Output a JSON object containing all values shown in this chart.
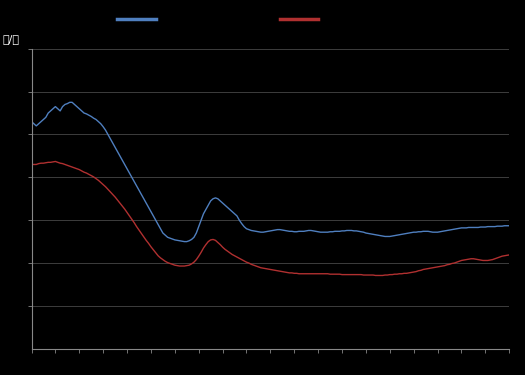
{
  "bg_color": "#000000",
  "plot_bg_color": "#000000",
  "grid_color": "#555555",
  "blue_color": "#4f7fbf",
  "red_color": "#b03030",
  "ylabel": "元/吨",
  "xlim": [
    0,
    100
  ],
  "ylim": [
    0,
    7
  ],
  "blue_x": [
    0,
    0.5,
    1,
    1.5,
    2,
    2.5,
    3,
    3.5,
    4,
    4.5,
    5,
    5.5,
    6,
    6.5,
    7,
    7.5,
    8,
    8.5,
    9,
    9.5,
    10,
    10.5,
    11,
    11.5,
    12,
    12.5,
    13,
    13.5,
    14,
    14.5,
    15,
    15.5,
    16,
    16.5,
    17,
    17.5,
    18,
    18.5,
    19,
    19.5,
    20,
    20.5,
    21,
    21.5,
    22,
    22.5,
    23,
    23.5,
    24,
    24.5,
    25,
    25.5,
    26,
    26.5,
    27,
    27.5,
    28,
    28.5,
    29,
    29.5,
    30,
    30.5,
    31,
    31.5,
    32,
    32.5,
    33,
    33.5,
    34,
    34.5,
    35,
    35.5,
    36,
    36.5,
    37,
    37.5,
    38,
    38.5,
    39,
    39.5,
    40,
    40.5,
    41,
    41.5,
    42,
    42.5,
    43,
    43.5,
    44,
    44.5,
    45,
    45.5,
    46,
    46.5,
    47,
    47.5,
    48,
    48.5,
    49,
    49.5,
    50,
    50.5,
    51,
    51.5,
    52,
    52.5,
    53,
    53.5,
    54,
    54.5,
    55,
    55.5,
    56,
    56.5,
    57,
    57.5,
    58,
    58.5,
    59,
    59.5,
    60,
    60.5,
    61,
    61.5,
    62,
    62.5,
    63,
    63.5,
    64,
    64.5,
    65,
    65.5,
    66,
    66.5,
    67,
    67.5,
    68,
    68.5,
    69,
    69.5,
    70,
    70.5,
    71,
    71.5,
    72,
    72.5,
    73,
    73.5,
    74,
    74.5,
    75,
    75.5,
    76,
    76.5,
    77,
    77.5,
    78,
    78.5,
    79,
    79.5,
    80,
    80.5,
    81,
    81.5,
    82,
    82.5,
    83,
    83.5,
    84,
    84.5,
    85,
    85.5,
    86,
    86.5,
    87,
    87.5,
    88,
    88.5,
    89,
    89.5,
    90,
    90.5,
    91,
    91.5,
    92,
    92.5,
    93,
    93.5,
    94,
    94.5,
    95,
    95.5,
    96,
    96.5,
    97,
    97.5,
    98,
    98.5,
    99,
    99.5,
    100
  ],
  "blue_y": [
    5.3,
    5.25,
    5.2,
    5.25,
    5.3,
    5.35,
    5.4,
    5.5,
    5.55,
    5.6,
    5.65,
    5.6,
    5.55,
    5.65,
    5.7,
    5.72,
    5.75,
    5.75,
    5.7,
    5.65,
    5.6,
    5.55,
    5.5,
    5.48,
    5.45,
    5.42,
    5.38,
    5.35,
    5.3,
    5.25,
    5.18,
    5.1,
    5.0,
    4.9,
    4.8,
    4.7,
    4.6,
    4.5,
    4.4,
    4.3,
    4.2,
    4.1,
    4.0,
    3.9,
    3.8,
    3.7,
    3.6,
    3.5,
    3.4,
    3.3,
    3.2,
    3.1,
    3.0,
    2.9,
    2.8,
    2.7,
    2.65,
    2.6,
    2.58,
    2.56,
    2.54,
    2.53,
    2.52,
    2.51,
    2.5,
    2.5,
    2.52,
    2.55,
    2.6,
    2.7,
    2.85,
    3.0,
    3.15,
    3.25,
    3.35,
    3.45,
    3.5,
    3.52,
    3.5,
    3.45,
    3.4,
    3.35,
    3.3,
    3.25,
    3.2,
    3.15,
    3.1,
    3.0,
    2.92,
    2.85,
    2.8,
    2.78,
    2.76,
    2.75,
    2.74,
    2.73,
    2.72,
    2.72,
    2.73,
    2.74,
    2.75,
    2.76,
    2.77,
    2.78,
    2.78,
    2.77,
    2.76,
    2.75,
    2.74,
    2.74,
    2.73,
    2.73,
    2.74,
    2.74,
    2.74,
    2.75,
    2.76,
    2.76,
    2.75,
    2.74,
    2.73,
    2.72,
    2.72,
    2.72,
    2.72,
    2.73,
    2.73,
    2.74,
    2.74,
    2.74,
    2.75,
    2.75,
    2.76,
    2.76,
    2.76,
    2.75,
    2.75,
    2.74,
    2.73,
    2.72,
    2.7,
    2.69,
    2.68,
    2.67,
    2.66,
    2.65,
    2.64,
    2.63,
    2.62,
    2.62,
    2.62,
    2.63,
    2.64,
    2.65,
    2.66,
    2.67,
    2.68,
    2.69,
    2.7,
    2.71,
    2.72,
    2.72,
    2.73,
    2.73,
    2.74,
    2.74,
    2.74,
    2.73,
    2.72,
    2.72,
    2.72,
    2.73,
    2.74,
    2.75,
    2.76,
    2.77,
    2.78,
    2.79,
    2.8,
    2.81,
    2.82,
    2.82,
    2.82,
    2.83,
    2.83,
    2.83,
    2.83,
    2.83,
    2.84,
    2.84,
    2.84,
    2.85,
    2.85,
    2.85,
    2.85,
    2.86,
    2.86,
    2.86,
    2.87,
    2.87,
    2.87
  ],
  "red_x": [
    0,
    0.5,
    1,
    1.5,
    2,
    2.5,
    3,
    3.5,
    4,
    4.5,
    5,
    5.5,
    6,
    6.5,
    7,
    7.5,
    8,
    8.5,
    9,
    9.5,
    10,
    10.5,
    11,
    11.5,
    12,
    12.5,
    13,
    13.5,
    14,
    14.5,
    15,
    15.5,
    16,
    16.5,
    17,
    17.5,
    18,
    18.5,
    19,
    19.5,
    20,
    20.5,
    21,
    21.5,
    22,
    22.5,
    23,
    23.5,
    24,
    24.5,
    25,
    25.5,
    26,
    26.5,
    27,
    27.5,
    28,
    28.5,
    29,
    29.5,
    30,
    30.5,
    31,
    31.5,
    32,
    32.5,
    33,
    33.5,
    34,
    34.5,
    35,
    35.5,
    36,
    36.5,
    37,
    37.5,
    38,
    38.5,
    39,
    39.5,
    40,
    40.5,
    41,
    41.5,
    42,
    42.5,
    43,
    43.5,
    44,
    44.5,
    45,
    45.5,
    46,
    46.5,
    47,
    47.5,
    48,
    48.5,
    49,
    49.5,
    50,
    50.5,
    51,
    51.5,
    52,
    52.5,
    53,
    53.5,
    54,
    54.5,
    55,
    55.5,
    56,
    56.5,
    57,
    57.5,
    58,
    58.5,
    59,
    59.5,
    60,
    60.5,
    61,
    61.5,
    62,
    62.5,
    63,
    63.5,
    64,
    64.5,
    65,
    65.5,
    66,
    66.5,
    67,
    67.5,
    68,
    68.5,
    69,
    69.5,
    70,
    70.5,
    71,
    71.5,
    72,
    72.5,
    73,
    73.5,
    74,
    74.5,
    75,
    75.5,
    76,
    76.5,
    77,
    77.5,
    78,
    78.5,
    79,
    79.5,
    80,
    80.5,
    81,
    81.5,
    82,
    82.5,
    83,
    83.5,
    84,
    84.5,
    85,
    85.5,
    86,
    86.5,
    87,
    87.5,
    88,
    88.5,
    89,
    89.5,
    90,
    90.5,
    91,
    91.5,
    92,
    92.5,
    93,
    93.5,
    94,
    94.5,
    95,
    95.5,
    96,
    96.5,
    97,
    97.5,
    98,
    98.5,
    99,
    99.5,
    100
  ],
  "red_y": [
    4.3,
    4.3,
    4.3,
    4.32,
    4.33,
    4.33,
    4.34,
    4.35,
    4.35,
    4.36,
    4.37,
    4.35,
    4.33,
    4.32,
    4.3,
    4.28,
    4.26,
    4.24,
    4.22,
    4.2,
    4.18,
    4.15,
    4.12,
    4.1,
    4.07,
    4.04,
    4.01,
    3.97,
    3.93,
    3.88,
    3.83,
    3.78,
    3.72,
    3.66,
    3.6,
    3.54,
    3.47,
    3.4,
    3.33,
    3.26,
    3.18,
    3.1,
    3.02,
    2.94,
    2.85,
    2.77,
    2.69,
    2.61,
    2.53,
    2.46,
    2.38,
    2.31,
    2.24,
    2.17,
    2.12,
    2.08,
    2.04,
    2.01,
    1.99,
    1.97,
    1.95,
    1.94,
    1.93,
    1.93,
    1.93,
    1.94,
    1.95,
    1.98,
    2.02,
    2.08,
    2.16,
    2.25,
    2.35,
    2.43,
    2.5,
    2.54,
    2.55,
    2.53,
    2.48,
    2.43,
    2.37,
    2.32,
    2.28,
    2.24,
    2.2,
    2.17,
    2.14,
    2.11,
    2.08,
    2.05,
    2.02,
    2.0,
    1.97,
    1.95,
    1.93,
    1.91,
    1.89,
    1.88,
    1.87,
    1.86,
    1.85,
    1.84,
    1.83,
    1.82,
    1.81,
    1.8,
    1.79,
    1.78,
    1.77,
    1.77,
    1.76,
    1.76,
    1.75,
    1.75,
    1.75,
    1.75,
    1.75,
    1.75,
    1.75,
    1.75,
    1.75,
    1.75,
    1.75,
    1.75,
    1.75,
    1.74,
    1.74,
    1.74,
    1.74,
    1.74,
    1.73,
    1.73,
    1.73,
    1.73,
    1.73,
    1.73,
    1.73,
    1.73,
    1.73,
    1.72,
    1.72,
    1.72,
    1.72,
    1.72,
    1.71,
    1.71,
    1.71,
    1.71,
    1.72,
    1.72,
    1.73,
    1.73,
    1.74,
    1.74,
    1.75,
    1.75,
    1.76,
    1.76,
    1.77,
    1.78,
    1.79,
    1.8,
    1.82,
    1.83,
    1.85,
    1.86,
    1.87,
    1.88,
    1.89,
    1.9,
    1.91,
    1.92,
    1.93,
    1.94,
    1.96,
    1.97,
    1.99,
    2.0,
    2.02,
    2.04,
    2.06,
    2.07,
    2.08,
    2.09,
    2.1,
    2.1,
    2.09,
    2.08,
    2.07,
    2.06,
    2.06,
    2.06,
    2.07,
    2.08,
    2.1,
    2.12,
    2.14,
    2.16,
    2.17,
    2.18,
    2.19
  ]
}
